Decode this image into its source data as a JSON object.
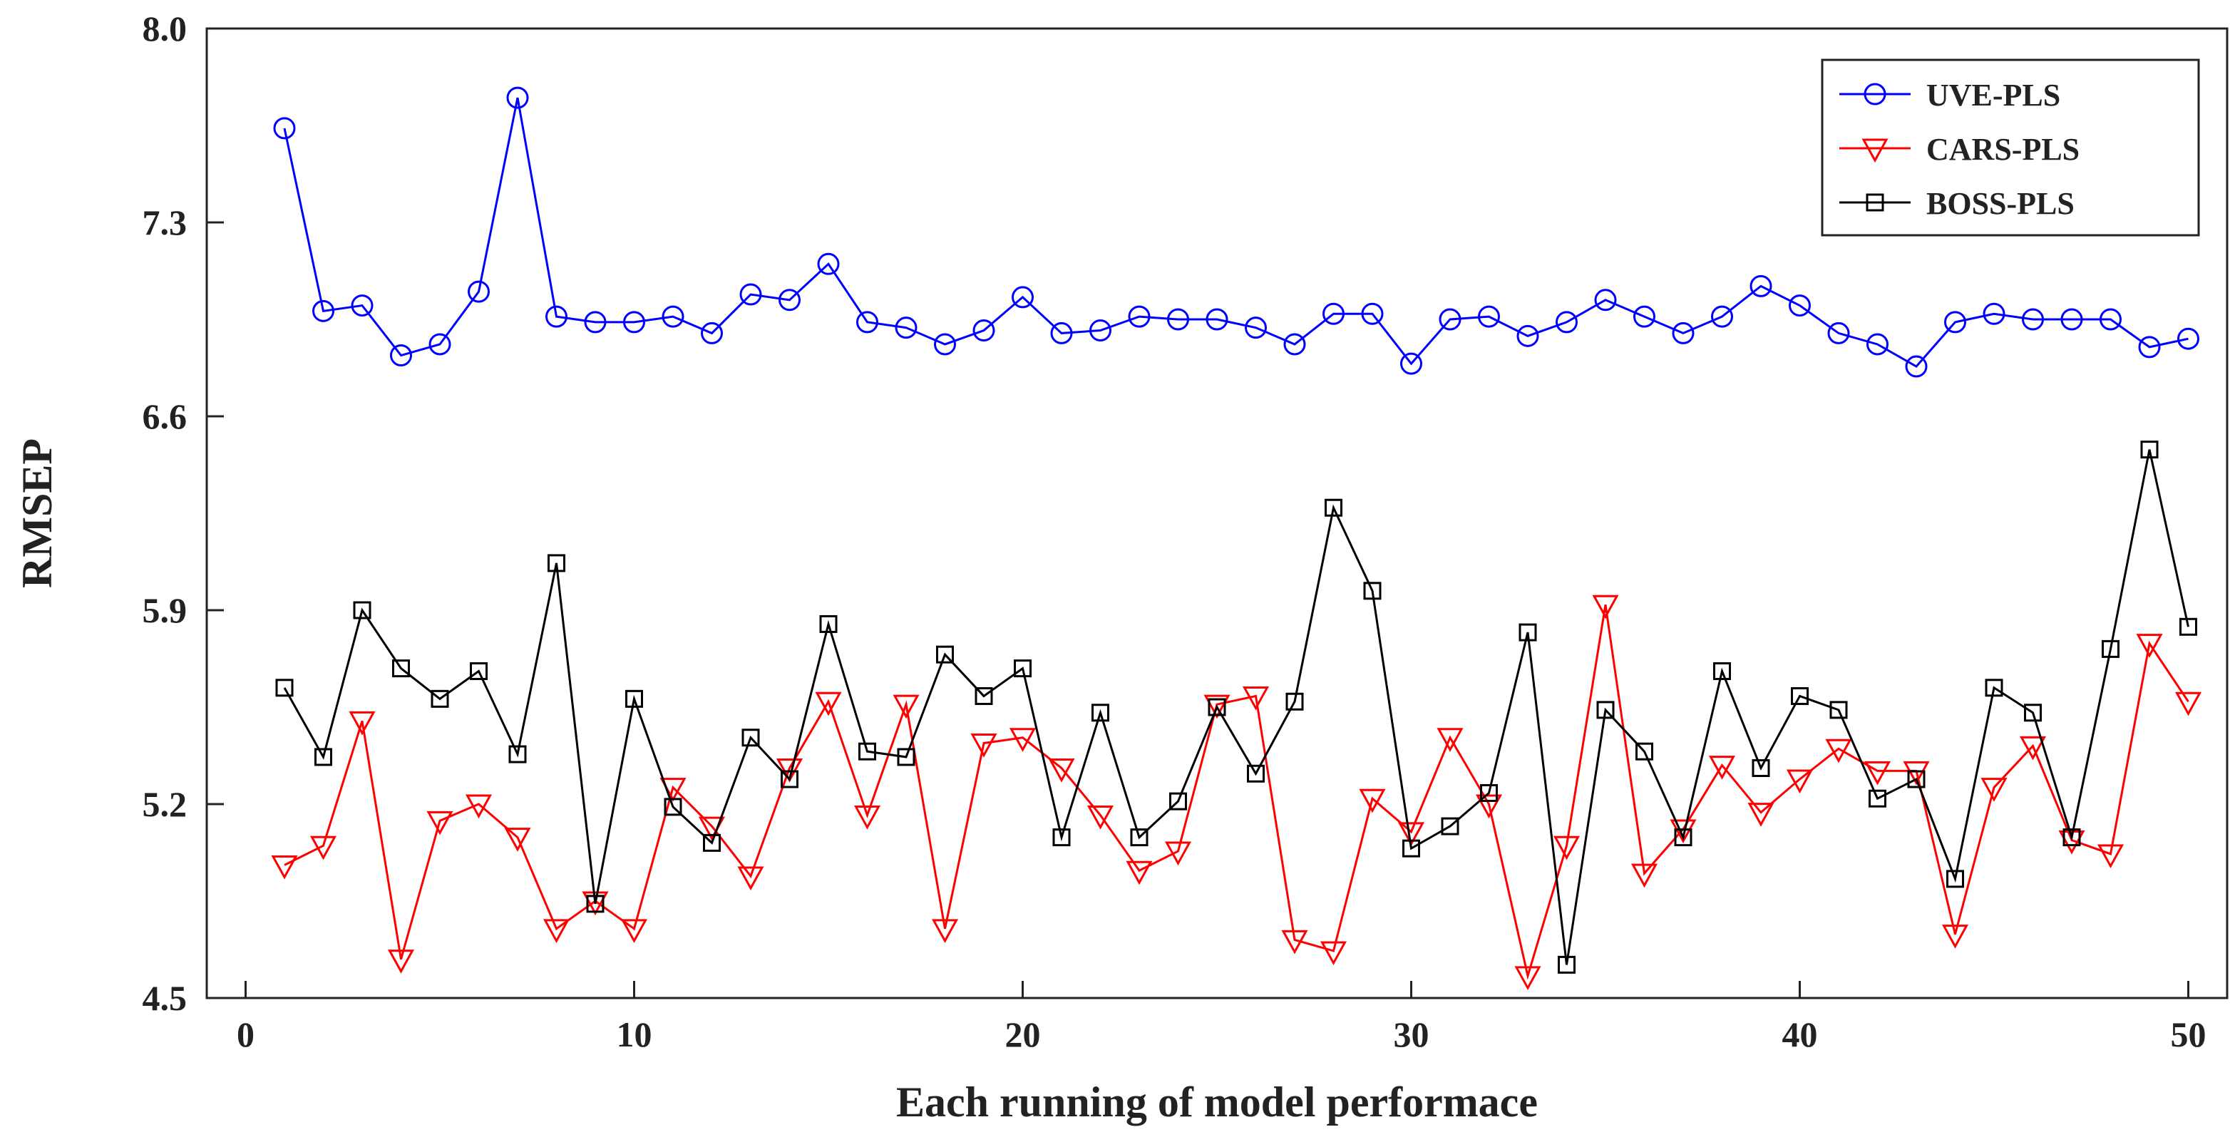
{
  "chart_data": {
    "type": "line",
    "title": "",
    "xlabel": "Each running of model performace",
    "ylabel": "RMSEP",
    "xlim": [
      -1,
      51
    ],
    "ylim": [
      4.5,
      8.0
    ],
    "xticks": [
      0,
      10,
      20,
      30,
      40,
      50
    ],
    "yticks": [
      4.5,
      5.2,
      5.9,
      6.6,
      7.3,
      8.0
    ],
    "ytick_labels": [
      "4.5",
      "5.2",
      "5.9",
      "6.6",
      "7.3",
      "8.0"
    ],
    "grid": false,
    "legend_position": "top-right",
    "x": [
      1,
      2,
      3,
      4,
      5,
      6,
      7,
      8,
      9,
      10,
      11,
      12,
      13,
      14,
      15,
      16,
      17,
      18,
      19,
      20,
      21,
      22,
      23,
      24,
      25,
      26,
      27,
      28,
      29,
      30,
      31,
      32,
      33,
      34,
      35,
      36,
      37,
      38,
      39,
      40,
      41,
      42,
      43,
      44,
      45,
      46,
      47,
      48,
      49,
      50
    ],
    "series": [
      {
        "name": "UVE-PLS",
        "color": "#0000ff",
        "marker": "circle",
        "values": [
          7.64,
          6.98,
          7.0,
          6.82,
          6.86,
          7.05,
          7.75,
          6.96,
          6.94,
          6.94,
          6.96,
          6.9,
          7.04,
          7.02,
          7.15,
          6.94,
          6.92,
          6.86,
          6.91,
          7.03,
          6.9,
          6.91,
          6.96,
          6.95,
          6.95,
          6.92,
          6.86,
          6.97,
          6.97,
          6.79,
          6.95,
          6.96,
          6.89,
          6.94,
          7.02,
          6.96,
          6.9,
          6.96,
          7.07,
          7.0,
          6.9,
          6.86,
          6.78,
          6.94,
          6.97,
          6.95,
          6.95,
          6.95,
          6.85,
          6.88
        ]
      },
      {
        "name": "CARS-PLS",
        "color": "#ff0000",
        "marker": "triangle-down",
        "values": [
          4.98,
          5.05,
          5.5,
          4.64,
          5.14,
          5.2,
          5.08,
          4.75,
          4.85,
          4.75,
          5.26,
          5.12,
          4.94,
          5.33,
          5.57,
          5.16,
          5.56,
          4.75,
          5.42,
          5.44,
          5.33,
          5.16,
          4.96,
          5.03,
          5.56,
          5.59,
          4.71,
          4.67,
          5.22,
          5.1,
          5.44,
          5.2,
          4.58,
          5.05,
          5.92,
          4.95,
          5.11,
          5.34,
          5.17,
          5.29,
          5.4,
          5.32,
          5.32,
          4.73,
          5.26,
          5.41,
          5.07,
          5.02,
          5.78,
          5.57
        ]
      },
      {
        "name": "BOSS-PLS",
        "color": "#000000",
        "marker": "square",
        "values": [
          5.62,
          5.37,
          5.9,
          5.69,
          5.58,
          5.68,
          5.38,
          6.07,
          4.84,
          5.58,
          5.19,
          5.06,
          5.44,
          5.29,
          5.85,
          5.39,
          5.37,
          5.74,
          5.59,
          5.69,
          5.08,
          5.53,
          5.08,
          5.21,
          5.55,
          5.31,
          5.57,
          6.27,
          5.97,
          5.04,
          5.12,
          5.24,
          5.82,
          4.62,
          5.54,
          5.39,
          5.08,
          5.68,
          5.33,
          5.59,
          5.54,
          5.22,
          5.29,
          4.93,
          5.62,
          5.53,
          5.08,
          5.76,
          6.48,
          5.84
        ]
      }
    ]
  }
}
